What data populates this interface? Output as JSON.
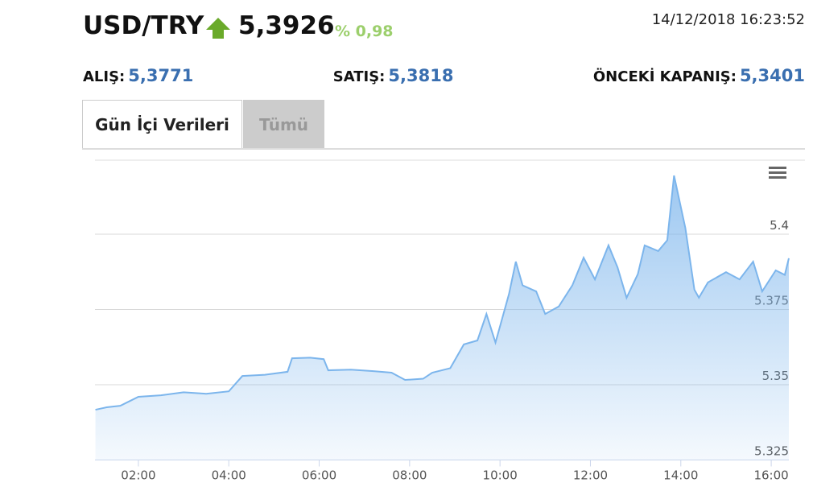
{
  "header": {
    "pair": "USD/TRY",
    "price": "5,3926",
    "change": "% 0,98",
    "timestamp": "14/12/2018 16:23:52"
  },
  "quotes": [
    {
      "label": "ALIŞ:",
      "value": "5,3771"
    },
    {
      "label": "SATIŞ:",
      "value": "5,3818"
    },
    {
      "label": "ÖNCEKİ KAPANIŞ:",
      "value": "5,3401"
    }
  ],
  "tabs": [
    "Gün İçi Verileri",
    "Tümü"
  ],
  "chart_data": {
    "type": "area",
    "color": "#7cb5ec",
    "grid": true,
    "series": [
      {
        "name": "USD/TRY",
        "x": [
          1.05,
          1.3,
          1.6,
          1.8,
          2.0,
          2.5,
          3.0,
          3.5,
          4.0,
          4.3,
          4.8,
          5.3,
          5.4,
          5.8,
          6.1,
          6.2,
          6.7,
          7.2,
          7.6,
          7.9,
          8.3,
          8.5,
          8.9,
          9.2,
          9.5,
          9.7,
          9.9,
          10.2,
          10.35,
          10.5,
          10.8,
          11.0,
          11.3,
          11.6,
          11.85,
          12.1,
          12.4,
          12.6,
          12.8,
          13.05,
          13.2,
          13.5,
          13.7,
          13.85,
          14.1,
          14.3,
          14.4,
          14.6,
          15.0,
          15.3,
          15.6,
          15.8,
          16.1,
          16.3,
          16.39
        ],
        "values": [
          5.3417,
          5.3425,
          5.343,
          5.3445,
          5.346,
          5.3465,
          5.3475,
          5.347,
          5.3478,
          5.3529,
          5.3533,
          5.3543,
          5.3588,
          5.359,
          5.3585,
          5.3548,
          5.355,
          5.3545,
          5.354,
          5.3516,
          5.352,
          5.354,
          5.3555,
          5.3634,
          5.3647,
          5.3735,
          5.364,
          5.3802,
          5.3909,
          5.383,
          5.381,
          5.3735,
          5.376,
          5.383,
          5.3922,
          5.385,
          5.3963,
          5.389,
          5.3789,
          5.3868,
          5.3963,
          5.3944,
          5.398,
          5.4195,
          5.4021,
          5.3816,
          5.3789,
          5.384,
          5.3874,
          5.385,
          5.3909,
          5.381,
          5.388,
          5.3865,
          5.392
        ]
      }
    ],
    "xlim": [
      1.04,
      16.39
    ],
    "xticks": [
      {
        "value": 2,
        "label": "02:00"
      },
      {
        "value": 4,
        "label": "04:00"
      },
      {
        "value": 6,
        "label": "06:00"
      },
      {
        "value": 8,
        "label": "08:00"
      },
      {
        "value": 10,
        "label": "10:00"
      },
      {
        "value": 12,
        "label": "12:00"
      },
      {
        "value": 14,
        "label": "14:00"
      },
      {
        "value": 16,
        "label": "16:00"
      }
    ],
    "ylim": [
      5.325,
      5.425
    ],
    "yticks": [
      5.325,
      5.35,
      5.375,
      5.4
    ]
  }
}
